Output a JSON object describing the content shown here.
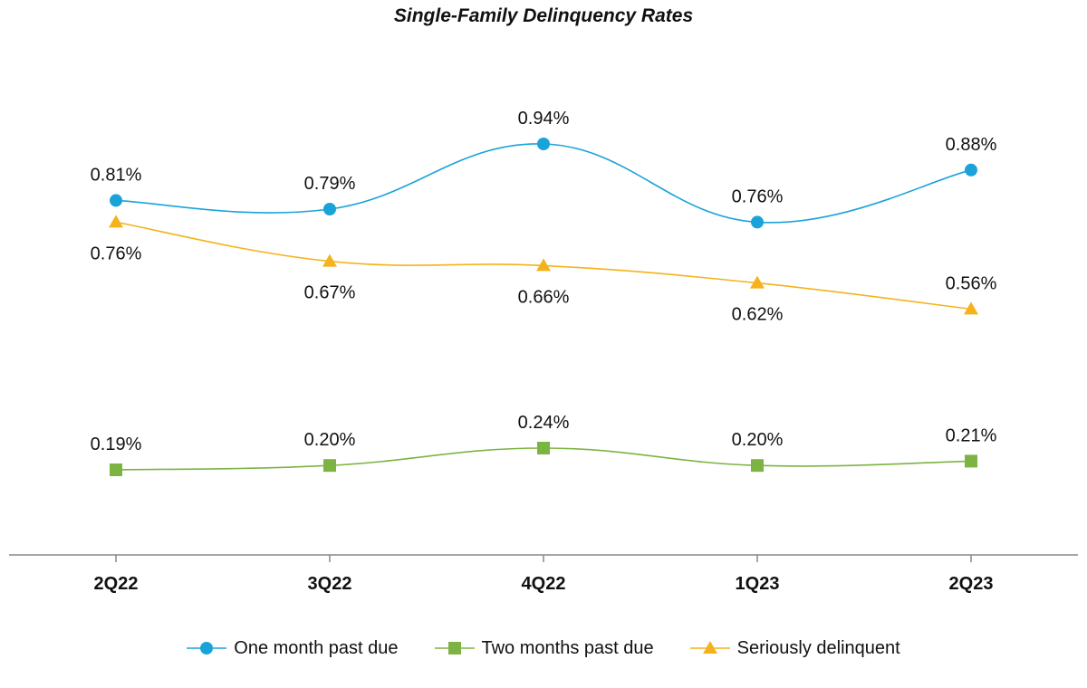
{
  "chart_data": {
    "type": "line",
    "title": "Single-Family Delinquency Rates",
    "categories": [
      "2Q22",
      "3Q22",
      "4Q22",
      "1Q23",
      "2Q23"
    ],
    "xlabel": "",
    "ylabel": "",
    "value_format": "percent",
    "series": [
      {
        "name": "One month past due",
        "values": [
          0.81,
          0.79,
          0.94,
          0.76,
          0.88
        ],
        "labels": [
          "0.81%",
          "0.79%",
          "0.94%",
          "0.76%",
          "0.88%"
        ],
        "color": "#1aa3d9",
        "marker": "circle",
        "label_position": "above"
      },
      {
        "name": "Two months past due",
        "values": [
          0.19,
          0.2,
          0.24,
          0.2,
          0.21
        ],
        "labels": [
          "0.19%",
          "0.20%",
          "0.24%",
          "0.20%",
          "0.21%"
        ],
        "color": "#7cb342",
        "marker": "square",
        "label_position": "above"
      },
      {
        "name": "Seriously delinquent",
        "values": [
          0.76,
          0.67,
          0.66,
          0.62,
          0.56
        ],
        "labels": [
          "0.76%",
          "0.67%",
          "0.66%",
          "0.62%",
          "0.56%"
        ],
        "color": "#f5b21b",
        "marker": "triangle",
        "label_position": "below",
        "label_position_last": "above"
      }
    ],
    "grid": false,
    "legend_position": "bottom-center"
  }
}
